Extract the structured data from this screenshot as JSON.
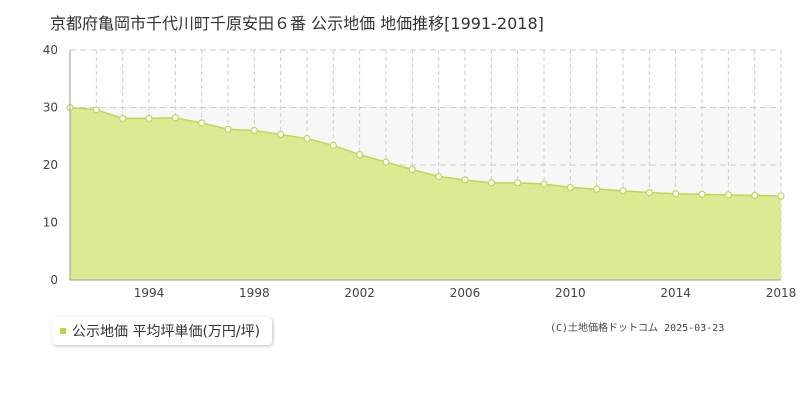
{
  "title": "京都府亀岡市千代川町千原安田６番 公示地価 地価推移[1991-2018]",
  "legend": {
    "label": "公示地価 平均坪単価(万円/坪)"
  },
  "copyright": "(C)土地価格ドットコム 2025-03-23",
  "colors": {
    "fill": "#dbeb94",
    "line": "#bcd856",
    "point_fill": "#ffffff",
    "legend_marker": "#b5d944",
    "grid": "#cccccc"
  },
  "chart_data": {
    "type": "area",
    "x": [
      1991,
      1992,
      1993,
      1994,
      1995,
      1996,
      1997,
      1998,
      1999,
      2000,
      2001,
      2002,
      2003,
      2004,
      2005,
      2006,
      2007,
      2008,
      2009,
      2010,
      2011,
      2012,
      2013,
      2014,
      2015,
      2016,
      2017,
      2018
    ],
    "series": [
      {
        "name": "公示地価 平均坪単価(万円/坪)",
        "values": [
          30.0,
          29.6,
          28.1,
          28.1,
          28.2,
          27.3,
          26.2,
          26.0,
          25.3,
          24.6,
          23.4,
          21.8,
          20.5,
          19.2,
          18.0,
          17.4,
          16.9,
          16.9,
          16.7,
          16.1,
          15.8,
          15.5,
          15.2,
          15.0,
          14.9,
          14.8,
          14.7,
          14.6
        ]
      }
    ],
    "y_ticks": [
      0,
      10,
      20,
      30,
      40
    ],
    "x_tick_labels": [
      "1994",
      "1998",
      "2002",
      "2006",
      "2010",
      "2014",
      "2018"
    ],
    "xlim": [
      1991,
      2018
    ],
    "ylim": [
      0,
      40
    ],
    "grid": true
  }
}
